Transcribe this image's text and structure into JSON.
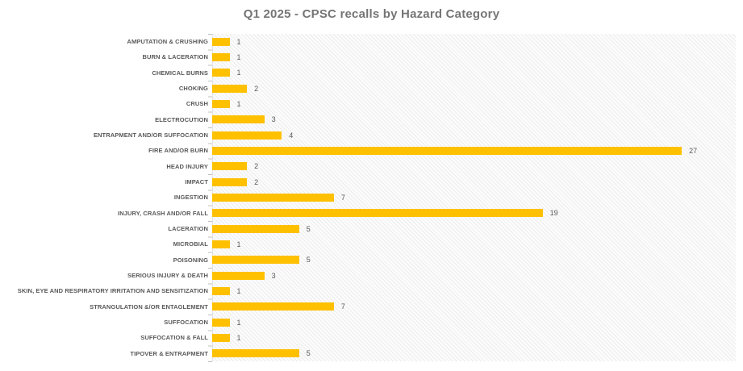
{
  "chart_data": {
    "type": "bar",
    "orientation": "horizontal",
    "title": "Q1 2025 - CPSC recalls by Hazard Category",
    "xlabel": "",
    "ylabel": "",
    "xlim": [
      0,
      30
    ],
    "grid": false,
    "legend": "none",
    "bar_color": "#FFC000",
    "title_color": "#757575",
    "label_color": "#595959",
    "plot_pattern": "light diagonal hatch",
    "categories": [
      "AMPUTATION & CRUSHING",
      "BURN & LACERATION",
      "CHEMICAL BURNS",
      "CHOKING",
      "CRUSH",
      "ELECTROCUTION",
      "ENTRAPMENT AND/OR SUFFOCATION",
      "FIRE AND/OR BURN",
      "HEAD INJURY",
      "IMPACT",
      "INGESTION",
      "INJURY, CRASH AND/OR FALL",
      "LACERATION",
      "MICROBIAL",
      "POISONING",
      "SERIOUS INJURY & DEATH",
      "SKIN, EYE AND RESPIRATORY IRRITATION AND SENSITIZATION",
      "STRANGULATION &/OR ENTAGLEMENT",
      "SUFFOCATION",
      "SUFFOCATION & FALL",
      "TIPOVER & ENTRAPMENT"
    ],
    "values": [
      1,
      1,
      1,
      2,
      1,
      3,
      4,
      27,
      2,
      2,
      7,
      19,
      5,
      1,
      5,
      3,
      1,
      7,
      1,
      1,
      5
    ]
  }
}
